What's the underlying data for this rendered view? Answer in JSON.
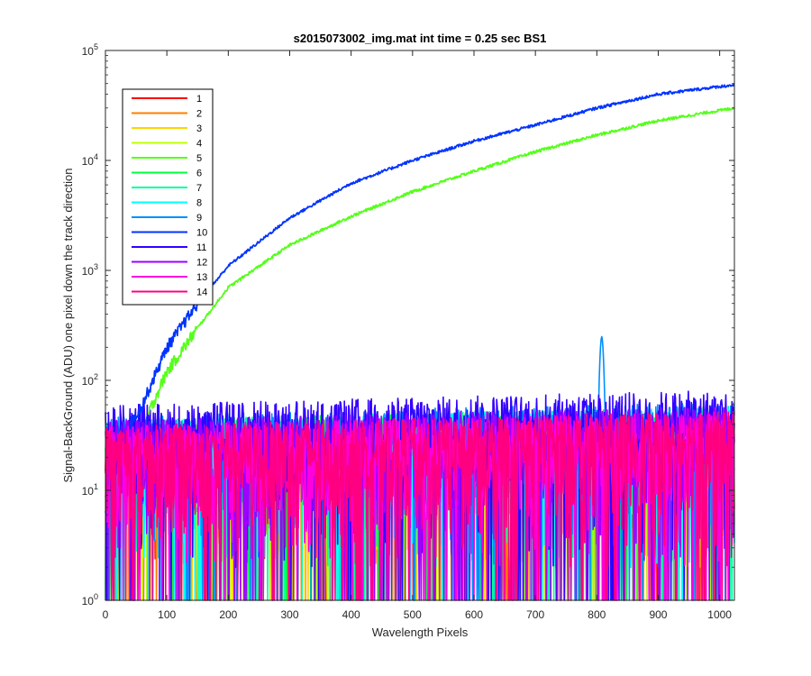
{
  "chart_data": {
    "type": "line",
    "title": "s2015073002_img.mat int time = 0.25 sec   BS1",
    "xlabel": "Wavelength Pixels",
    "ylabel": "Signal-BackGround (ADU) one pixel down the track direction",
    "xlim": [
      0,
      1024
    ],
    "ylim": [
      1,
      100000
    ],
    "yscale": "log",
    "x_ticks": [
      0,
      100,
      200,
      300,
      400,
      500,
      600,
      700,
      800,
      900,
      1000
    ],
    "y_ticks": [
      {
        "value": 1,
        "base": "10",
        "exp": "0"
      },
      {
        "value": 10,
        "base": "10",
        "exp": "1"
      },
      {
        "value": 100,
        "base": "10",
        "exp": "2"
      },
      {
        "value": 1000,
        "base": "10",
        "exp": "3"
      },
      {
        "value": 10000,
        "base": "10",
        "exp": "4"
      },
      {
        "value": 100000,
        "base": "10",
        "exp": "5"
      }
    ],
    "grid": false,
    "legend_position": "top-left",
    "series": [
      {
        "name": "1",
        "color": "#ff0000",
        "kind": "noise",
        "noise_level": 18
      },
      {
        "name": "2",
        "color": "#ff7f00",
        "kind": "noise",
        "noise_level": 18
      },
      {
        "name": "3",
        "color": "#ffd400",
        "kind": "noise",
        "noise_level": 18
      },
      {
        "name": "4",
        "color": "#bfff00",
        "kind": "noise",
        "noise_level": 18
      },
      {
        "name": "5",
        "color": "#55ff1a",
        "kind": "signal",
        "x": [
          70,
          100,
          150,
          200,
          300,
          400,
          500,
          600,
          700,
          800,
          900,
          1000,
          1024
        ],
        "values": [
          50,
          120,
          300,
          700,
          1700,
          3100,
          5200,
          8000,
          12000,
          17000,
          23000,
          28500,
          30000
        ]
      },
      {
        "name": "6",
        "color": "#00ff40",
        "kind": "noise",
        "noise_level": 20
      },
      {
        "name": "7",
        "color": "#00ff9f",
        "kind": "noise",
        "noise_level": 20
      },
      {
        "name": "8",
        "color": "#00ffff",
        "kind": "noise",
        "noise_level": 20
      },
      {
        "name": "9",
        "color": "#008fff",
        "kind": "noise",
        "noise_level": 22
      },
      {
        "name": "10",
        "color": "#0033ff",
        "kind": "signal",
        "x": [
          40,
          60,
          100,
          150,
          200,
          300,
          400,
          500,
          600,
          700,
          800,
          900,
          1000,
          1024
        ],
        "values": [
          40,
          60,
          200,
          500,
          1100,
          3000,
          6200,
          10000,
          15000,
          21000,
          30000,
          40000,
          47000,
          48500
        ]
      },
      {
        "name": "11",
        "color": "#3300ff",
        "kind": "noise",
        "noise_level": 28
      },
      {
        "name": "12",
        "color": "#9f00ff",
        "kind": "noise",
        "noise_level": 20
      },
      {
        "name": "13",
        "color": "#ff00df",
        "kind": "noise",
        "noise_level": 18
      },
      {
        "name": "14",
        "color": "#ff0080",
        "kind": "noise",
        "noise_level": 18
      }
    ],
    "annotations": [
      {
        "text": "",
        "x": 808,
        "y": 250,
        "note_kind": "peak"
      }
    ]
  }
}
